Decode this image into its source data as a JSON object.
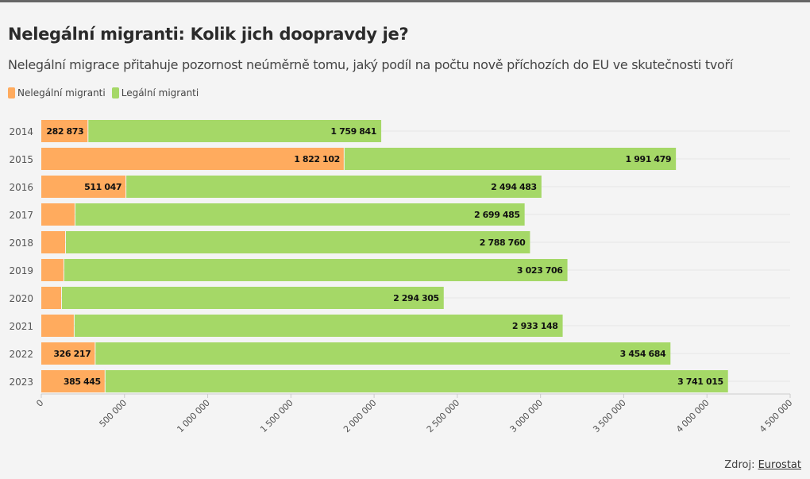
{
  "title": "Nelegální migranti: Kolik jich doopravdy je?",
  "subtitle": "Nelegální migrace přitahuje pozornost neúměrně tomu, jaký podíl na počtu nově příchozích do EU ve skutečnosti tvoří",
  "source_label": "Zdroj:",
  "source_link": "Eurostat",
  "colors": {
    "illegal": "#ffab5e",
    "legal": "#a5d867"
  },
  "chart_data": {
    "type": "bar",
    "orientation": "horizontal",
    "stacked": true,
    "categories": [
      "2014",
      "2015",
      "2016",
      "2017",
      "2018",
      "2019",
      "2020",
      "2021",
      "2022",
      "2023"
    ],
    "series": [
      {
        "name": "Nelegální migranti",
        "values": [
          282873,
          1822102,
          511047,
          205000,
          148000,
          138000,
          124000,
          200000,
          326217,
          385445
        ],
        "labels": [
          "282 873",
          "1 822 102",
          "511 047",
          "",
          "",
          "",
          "",
          "",
          "326 217",
          "385 445"
        ]
      },
      {
        "name": "Legální migranti",
        "values": [
          1759841,
          1991479,
          2494483,
          2699485,
          2788760,
          3023706,
          2294305,
          2933148,
          3454684,
          3741015
        ],
        "labels": [
          "1 759 841",
          "1 991 479",
          "2 494 483",
          "2 699 485",
          "2 788 760",
          "3 023 706",
          "2 294 305",
          "2 933 148",
          "3 454 684",
          "3 741 015"
        ]
      }
    ],
    "xlim": [
      0,
      4500000
    ],
    "xticks": [
      0,
      500000,
      1000000,
      1500000,
      2000000,
      2500000,
      3000000,
      3500000,
      4000000,
      4500000
    ],
    "xtick_labels": [
      "0",
      "500 000",
      "1 000 000",
      "1 500 000",
      "2 000 000",
      "2 500 000",
      "3 000 000",
      "3 500 000",
      "4 000 000",
      "4 500 000"
    ],
    "legend": "top-left"
  }
}
